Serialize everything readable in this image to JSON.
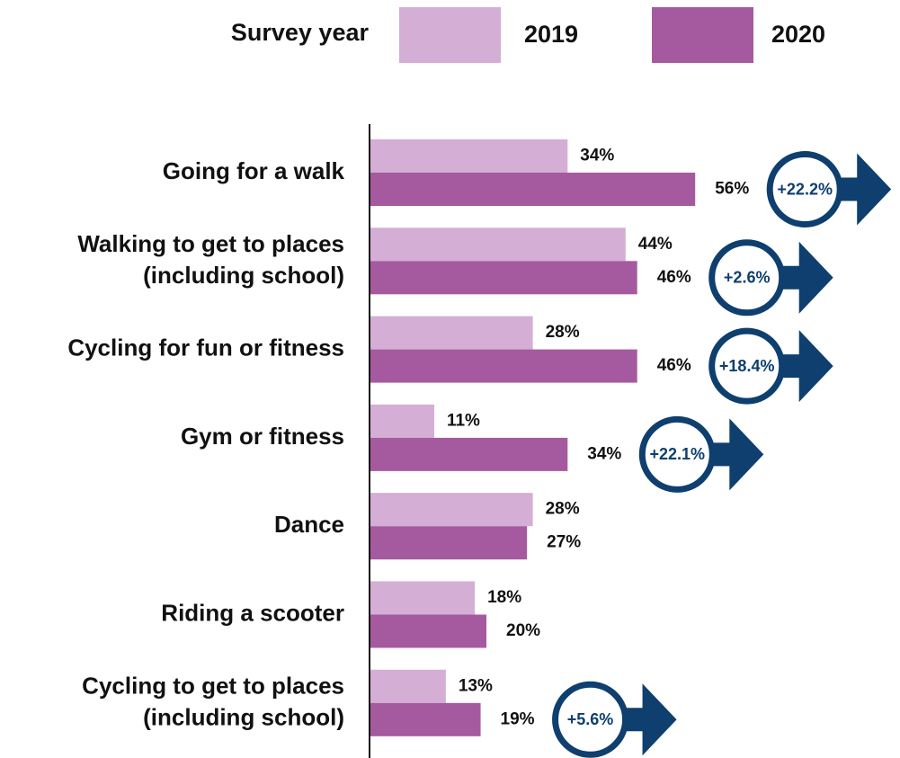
{
  "chart_data": {
    "type": "bar",
    "orientation": "horizontal",
    "legend_title": "Survey year",
    "categories": [
      "Going for a walk",
      "Walking to get to places\n(including school)",
      "Cycling for fun or fitness",
      "Gym or fitness",
      "Dance",
      "Riding a scooter",
      "Cycling to get to places\n(including school)"
    ],
    "series": [
      {
        "name": "2019",
        "color": "#d4aed4",
        "values": [
          34,
          44,
          28,
          11,
          28,
          18,
          13
        ],
        "value_labels": [
          "34%",
          "44%",
          "28%",
          "11%",
          "28%",
          "18%",
          "13%"
        ]
      },
      {
        "name": "2020",
        "color": "#a55a9f",
        "values": [
          56,
          46,
          46,
          34,
          27,
          20,
          19
        ],
        "value_labels": [
          "56%",
          "46%",
          "46%",
          "34%",
          "27%",
          "20%",
          "19%"
        ]
      }
    ],
    "annotations": [
      "+22.2%",
      "+2.6%",
      "+18.4%",
      "+22.1%",
      null,
      null,
      "+5.6%"
    ],
    "annotation_color": "#0e3f6e"
  }
}
